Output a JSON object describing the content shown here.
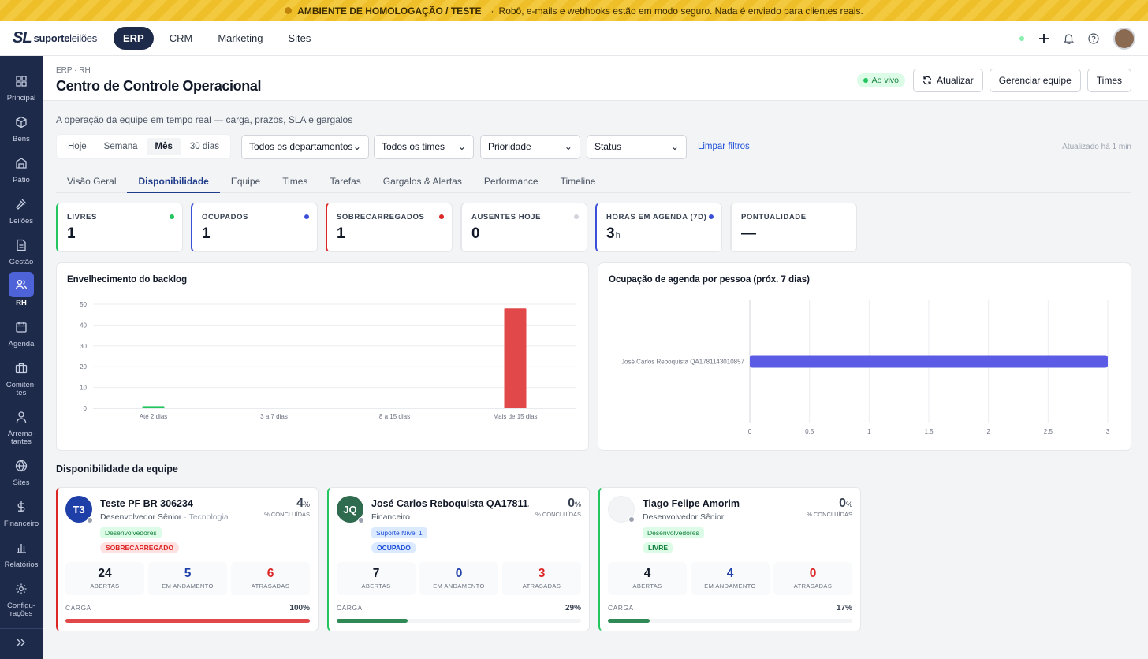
{
  "banner": {
    "title": "AMBIENTE DE HOMOLOGAÇÃO / TESTE",
    "separator": "·",
    "text": "Robô, e-mails e webhooks estão em modo seguro. Nada é enviado para clientes reais."
  },
  "brand": {
    "mark": "SL",
    "name_bold": "suporte",
    "name_rest": "leilões"
  },
  "modules": [
    {
      "label": "ERP",
      "active": true
    },
    {
      "label": "CRM"
    },
    {
      "label": "Marketing"
    },
    {
      "label": "Sites"
    }
  ],
  "sidebar": {
    "items": [
      {
        "label": "Principal",
        "icon": "grid-icon"
      },
      {
        "label": "Bens",
        "icon": "box-icon"
      },
      {
        "label": "Pátio",
        "icon": "warehouse-icon"
      },
      {
        "label": "Leilões",
        "icon": "gavel-icon"
      },
      {
        "label": "Gestão",
        "icon": "document-icon"
      },
      {
        "label": "RH",
        "icon": "users-icon",
        "active": true
      },
      {
        "label": "Agenda",
        "icon": "calendar-icon"
      },
      {
        "label": "Comiten-tes",
        "icon": "briefcase-icon"
      },
      {
        "label": "Arrema-tantes",
        "icon": "user-icon"
      },
      {
        "label": "Sites",
        "icon": "globe-icon"
      },
      {
        "label": "Financeiro",
        "icon": "dollar-icon"
      },
      {
        "label": "Relatórios",
        "icon": "bar-chart-icon"
      },
      {
        "label": "Configu-rações",
        "icon": "gear-icon"
      }
    ],
    "expand_icon": "chevrons-right-icon"
  },
  "header": {
    "breadcrumb": "ERP · RH",
    "title": "Centro de Controle Operacional",
    "live": "Ao vivo",
    "refresh": "Atualizar",
    "manage": "Gerenciar equipe",
    "teams": "Times"
  },
  "subtitle": "A operação da equipe em tempo real — carga, prazos, SLA e gargalos",
  "filters": {
    "periods": [
      {
        "label": "Hoje"
      },
      {
        "label": "Semana"
      },
      {
        "label": "Mês",
        "active": true
      },
      {
        "label": "30 dias"
      }
    ],
    "department": "Todos os departamentos",
    "team": "Todos os times",
    "priority": "Prioridade",
    "status": "Status",
    "clear": "Limpar filtros",
    "updated": "Atualizado há 1 min"
  },
  "tabs": [
    {
      "label": "Visão Geral"
    },
    {
      "label": "Disponibilidade",
      "active": true
    },
    {
      "label": "Equipe"
    },
    {
      "label": "Times"
    },
    {
      "label": "Tarefas"
    },
    {
      "label": "Gargalos & Alertas"
    },
    {
      "label": "Performance"
    },
    {
      "label": "Timeline"
    }
  ],
  "kpis": [
    {
      "label": "LIVRES",
      "value": "1",
      "color": "#22c55e",
      "dot": "#22c55e"
    },
    {
      "label": "OCUPADOS",
      "value": "1",
      "color": "#3b4fd8",
      "dot": "#3b4fd8"
    },
    {
      "label": "SOBRECARREGADOS",
      "value": "1",
      "color": "#dc2626",
      "dot": "#dc2626"
    },
    {
      "label": "AUSENTES HOJE",
      "value": "0",
      "color": "#d1d5db",
      "dot": "#d1d5db"
    },
    {
      "label": "HORAS EM AGENDA (7D)",
      "value": "3",
      "unit": "h",
      "color": "#3b4fd8",
      "dot": "#3b4fd8"
    },
    {
      "label": "PONTUALIDADE",
      "value": "—",
      "color": "#d1d5db"
    }
  ],
  "chart_data": [
    {
      "type": "bar",
      "title": "Envelhecimento do backlog",
      "categories": [
        "Até 2 dias",
        "3 a 7 dias",
        "8 a 15 dias",
        "Mais de 15 dias"
      ],
      "values": [
        1,
        0,
        0,
        48
      ],
      "ylim": [
        0,
        50
      ],
      "yticks": [
        0,
        10,
        20,
        30,
        40,
        50
      ],
      "colors": [
        "#22c55e",
        "#22c55e",
        "#22c55e",
        "#e0484a"
      ],
      "grid": true
    },
    {
      "type": "bar",
      "orientation": "horizontal",
      "title": "Ocupação de agenda por pessoa (próx. 7 dias)",
      "categories": [
        "José Carlos Reboquista QA1781143010857"
      ],
      "values": [
        3
      ],
      "xlim": [
        0,
        3
      ],
      "xticks": [
        "0",
        "0.5",
        "1",
        "1.5",
        "2",
        "2.5",
        "3"
      ],
      "color": "#5b5be6",
      "grid": true
    }
  ],
  "team_section": "Disponibilidade da equipe",
  "people": [
    {
      "initials": "T3",
      "avatar_color": "#1e3fa8",
      "accent": "#dc2626",
      "name": "Teste PF BR 306234",
      "role": "Desenvolvedor Sênior",
      "dept": "Tecnologia",
      "tag": "Desenvolvedores",
      "tag_bg": "#dcfce7",
      "tag_fg": "#15803d",
      "status": "SOBRECARREGADO",
      "status_bg": "#fee2e2",
      "status_fg": "#dc2626",
      "pct": "4",
      "pct_unit": "%",
      "pct_label": "% CONCLUÍDAS",
      "open": "24",
      "in_progress": "5",
      "late": "6",
      "open_label": "ABERTAS",
      "progress_label": "EM ANDAMENTO",
      "late_label": "ATRASADAS",
      "load_label": "CARGA",
      "load": "100%",
      "load_fraction": 1.0,
      "bar_color": "#e0484a"
    },
    {
      "initials": "JQ",
      "avatar_color": "#2f6b4f",
      "accent": "#22c55e",
      "name": "José Carlos Reboquista QA17811...",
      "role": "Financeiro",
      "dept": "",
      "tag": "Suporte Nível 1",
      "tag_bg": "#dbeafe",
      "tag_fg": "#1d4ed8",
      "status": "OCUPADO",
      "status_bg": "#dbeafe",
      "status_fg": "#1d4ed8",
      "pct": "0",
      "pct_unit": "%",
      "pct_label": "% CONCLUÍDAS",
      "open": "7",
      "in_progress": "0",
      "late": "3",
      "open_label": "ABERTAS",
      "progress_label": "EM ANDAMENTO",
      "late_label": "ATRASADAS",
      "load_label": "CARGA",
      "load": "29%",
      "load_fraction": 0.29,
      "bar_color": "#2f8a55"
    },
    {
      "initials": "",
      "avatar_color": "#f3f4f6",
      "accent": "#22c55e",
      "name": "Tiago Felipe Amorim",
      "role": "Desenvolvedor Sênior",
      "dept": "",
      "tag": "Desenvolvedores",
      "tag_bg": "#dcfce7",
      "tag_fg": "#15803d",
      "status": "LIVRE",
      "status_bg": "#dcfce7",
      "status_fg": "#15803d",
      "pct": "0",
      "pct_unit": "%",
      "pct_label": "% CONCLUÍDAS",
      "open": "4",
      "in_progress": "4",
      "late": "0",
      "open_label": "ABERTAS",
      "progress_label": "EM ANDAMENTO",
      "late_label": "ATRASADAS",
      "load_label": "CARGA",
      "load": "17%",
      "load_fraction": 0.17,
      "bar_color": "#2f8a55"
    }
  ]
}
